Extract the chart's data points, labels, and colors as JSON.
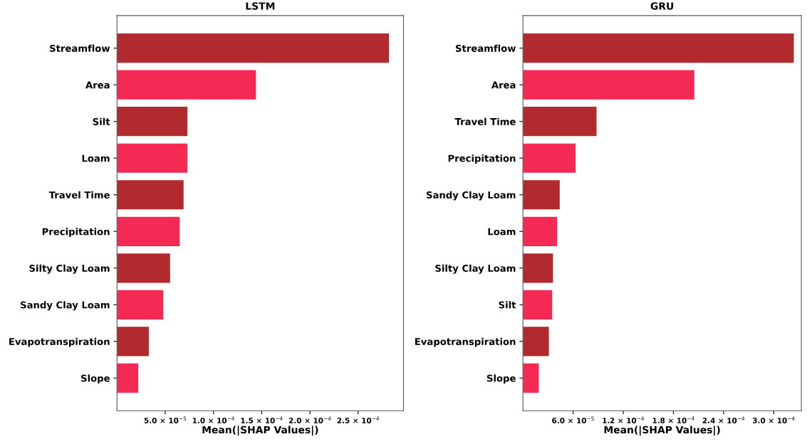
{
  "chart_data": [
    {
      "type": "bar",
      "orientation": "horizontal",
      "title": "LSTM",
      "xlabel": "Mean(|SHAP Values|)",
      "categories": [
        "Streamflow",
        "Area",
        "Silt",
        "Loam",
        "Travel Time",
        "Precipitation",
        "Silty Clay Loam",
        "Sandy Clay Loam",
        "Evapotranspiration",
        "Slope"
      ],
      "values": [
        0.000282,
        0.000144,
        7.3e-05,
        7.3e-05,
        6.9e-05,
        6.5e-05,
        5.5e-05,
        4.8e-05,
        3.3e-05,
        2.2e-05
      ],
      "colors": [
        "#b22a2e",
        "#f42a55",
        "#b22a2e",
        "#f42a55",
        "#b22a2e",
        "#f42a55",
        "#b22a2e",
        "#f42a55",
        "#b22a2e",
        "#f42a55"
      ],
      "xlim": [
        0,
        0.000297
      ],
      "xticks": [
        {
          "value": 5e-05,
          "label": "5.0 × 10$^{−5}$"
        },
        {
          "value": 0.0001,
          "label": "1.0 × 10$^{−4}$"
        },
        {
          "value": 0.00015,
          "label": "1.5 × 10$^{−4}$"
        },
        {
          "value": 0.0002,
          "label": "2.0 × 10$^{−4}$"
        },
        {
          "value": 0.00025,
          "label": "2.5 × 10$^{−4}$"
        }
      ],
      "grid": false,
      "legend": false
    },
    {
      "type": "bar",
      "orientation": "horizontal",
      "title": "GRU",
      "xlabel": "Mean(|SHAP Values|)",
      "categories": [
        "Streamflow",
        "Area",
        "Travel Time",
        "Precipitation",
        "Sandy Clay Loam",
        "Loam",
        "Silty Clay Loam",
        "Silt",
        "Evapotranspiration",
        "Slope"
      ],
      "values": [
        0.000324,
        0.000205,
        8.8e-05,
        6.3e-05,
        4.4e-05,
        4.1e-05,
        3.6e-05,
        3.5e-05,
        3.1e-05,
        1.9e-05
      ],
      "colors": [
        "#b22a2e",
        "#f42a55",
        "#b22a2e",
        "#f42a55",
        "#b22a2e",
        "#f42a55",
        "#b22a2e",
        "#f42a55",
        "#b22a2e",
        "#f42a55"
      ],
      "xlim": [
        0,
        0.000333
      ],
      "xticks": [
        {
          "value": 6e-05,
          "label": "6.0 × 10$^{−5}$"
        },
        {
          "value": 0.00012,
          "label": "1.2 × 10$^{−4}$"
        },
        {
          "value": 0.00018,
          "label": "1.8 × 10$^{−4}$"
        },
        {
          "value": 0.00024,
          "label": "2.4 × 10$^{−4}$"
        },
        {
          "value": 0.0003,
          "label": "3.0 × 10$^{−4}$"
        }
      ],
      "grid": false,
      "legend": false
    }
  ]
}
